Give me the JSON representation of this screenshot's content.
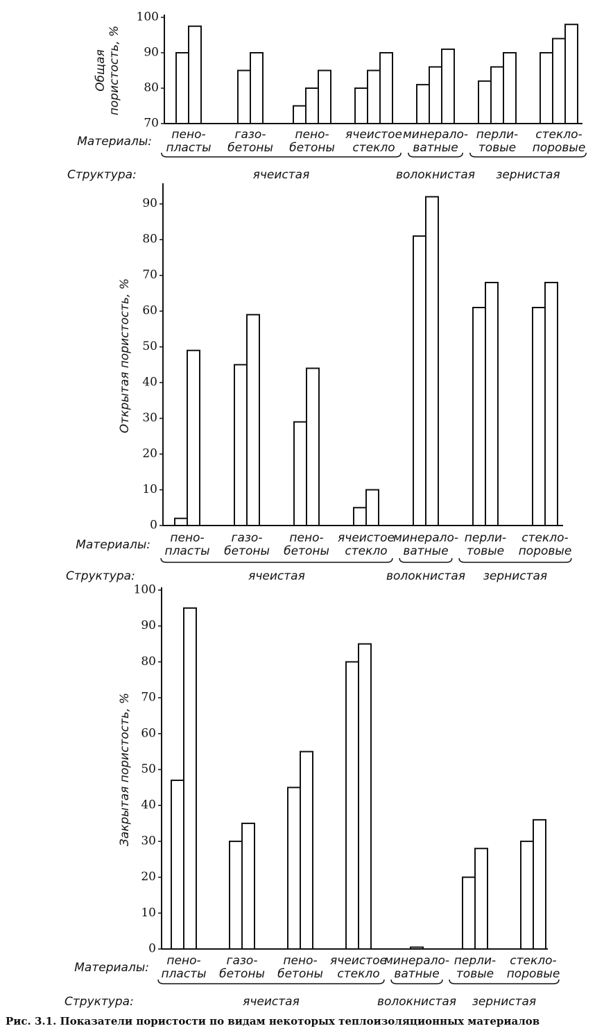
{
  "chart_data": [
    {
      "type": "bar",
      "ylabel": [
        "Общая",
        "пористость, %"
      ],
      "ylim": [
        70,
        100
      ],
      "yticks": [
        70,
        80,
        90,
        100
      ],
      "materials_label": "Материалы:",
      "structure_label": "Структура:",
      "groups": [
        {
          "name": "ячеистая",
          "materials": [
            {
              "label": [
                "пено-",
                "пласты"
              ],
              "values": [
                90,
                97.5
              ]
            },
            {
              "label": [
                "газо-",
                "бетоны"
              ],
              "values": [
                85,
                90
              ]
            },
            {
              "label": [
                "пено-",
                "бетоны"
              ],
              "values": [
                75,
                80,
                85
              ]
            },
            {
              "label": [
                "ячеистое",
                "стекло"
              ],
              "values": [
                80,
                85,
                90
              ]
            }
          ]
        },
        {
          "name": "волокнистая",
          "materials": [
            {
              "label": [
                "минерало-",
                "ватные"
              ],
              "values": [
                81,
                86,
                91
              ]
            }
          ]
        },
        {
          "name": "зернистая",
          "materials": [
            {
              "label": [
                "перли-",
                "товые"
              ],
              "values": [
                82,
                86,
                90
              ]
            },
            {
              "label": [
                "стекло-",
                "поровые"
              ],
              "values": [
                90,
                94,
                98
              ]
            }
          ]
        }
      ]
    },
    {
      "type": "bar",
      "ylabel": [
        "Открытая пористость, %"
      ],
      "ylim": [
        0,
        95
      ],
      "yticks": [
        0,
        10,
        20,
        30,
        40,
        50,
        60,
        70,
        80,
        90
      ],
      "materials_label": "Материалы:",
      "structure_label": "Структура:",
      "groups": [
        {
          "name": "ячеистая",
          "materials": [
            {
              "label": [
                "пено-",
                "пласты"
              ],
              "values": [
                2,
                49
              ]
            },
            {
              "label": [
                "газо-",
                "бетоны"
              ],
              "values": [
                45,
                59
              ]
            },
            {
              "label": [
                "пено-",
                "бетоны"
              ],
              "values": [
                29,
                44
              ]
            },
            {
              "label": [
                "ячеистое",
                "стекло"
              ],
              "values": [
                5,
                10
              ]
            }
          ]
        },
        {
          "name": "волокнистая",
          "materials": [
            {
              "label": [
                "минерало-",
                "ватные"
              ],
              "values": [
                81,
                92
              ]
            }
          ]
        },
        {
          "name": "зернистая",
          "materials": [
            {
              "label": [
                "перли-",
                "товые"
              ],
              "values": [
                61,
                68
              ]
            },
            {
              "label": [
                "стекло-",
                "поровые"
              ],
              "values": [
                61,
                68
              ]
            }
          ]
        }
      ]
    },
    {
      "type": "bar",
      "ylabel": [
        "Закрытая пористость, %"
      ],
      "ylim": [
        0,
        100
      ],
      "yticks": [
        0,
        10,
        20,
        30,
        40,
        50,
        60,
        70,
        80,
        90,
        100
      ],
      "materials_label": "Материалы:",
      "structure_label": "Структура:",
      "groups": [
        {
          "name": "ячеистая",
          "materials": [
            {
              "label": [
                "пено-",
                "пласты"
              ],
              "values": [
                47,
                95
              ]
            },
            {
              "label": [
                "газо-",
                "бетоны"
              ],
              "values": [
                30,
                35
              ]
            },
            {
              "label": [
                "пено-",
                "бетоны"
              ],
              "values": [
                45,
                55
              ]
            },
            {
              "label": [
                "ячеистое",
                "стекло"
              ],
              "values": [
                80,
                85
              ]
            }
          ]
        },
        {
          "name": "волокнистая",
          "materials": [
            {
              "label": [
                "минерало-",
                "ватные"
              ],
              "values": [
                0.5
              ]
            }
          ]
        },
        {
          "name": "зернистая",
          "materials": [
            {
              "label": [
                "перли-",
                "товые"
              ],
              "values": [
                20,
                28
              ]
            },
            {
              "label": [
                "стекло-",
                "поровые"
              ],
              "values": [
                30,
                36
              ]
            }
          ]
        }
      ]
    }
  ],
  "caption": "Рис. 3.1. Показатели пористости по видам некоторых теплоизоляционных материалов"
}
